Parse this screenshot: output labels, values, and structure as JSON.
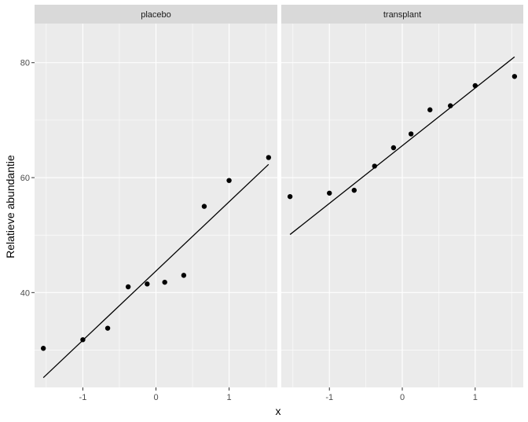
{
  "chart_data": {
    "type": "scatter",
    "xlabel": "x",
    "ylabel": "Relatieve abundantie",
    "xlim": [
      -1.66,
      1.66
    ],
    "ylim": [
      23.5,
      86.8
    ],
    "x_ticks": [
      -1,
      0,
      1
    ],
    "x_tick_labels": [
      "-1",
      "0",
      "1"
    ],
    "y_ticks": [
      40,
      60,
      80
    ],
    "y_tick_labels": [
      "40",
      "60",
      "80"
    ],
    "y_minor_ticks": [
      30,
      50,
      70
    ],
    "x_minor_ticks": [
      -1.5,
      -0.5,
      0.5,
      1.5
    ],
    "grid": true,
    "legend": "none",
    "facets": [
      {
        "strip": "placebo",
        "x": [
          -1.54,
          -1.0,
          -0.66,
          -0.38,
          -0.12,
          0.12,
          0.38,
          0.66,
          1.0,
          1.54
        ],
        "y": [
          30.3,
          31.8,
          33.8,
          41.0,
          41.5,
          41.8,
          43.0,
          55.0,
          59.5,
          63.5
        ],
        "fit_line": {
          "x": [
            -1.54,
            1.54
          ],
          "y": [
            25.2,
            62.3
          ]
        }
      },
      {
        "strip": "transplant",
        "x": [
          -1.54,
          -1.0,
          -0.66,
          -0.38,
          -0.12,
          0.12,
          0.38,
          0.66,
          1.0,
          1.54
        ],
        "y": [
          56.7,
          57.3,
          57.8,
          62.0,
          65.2,
          67.6,
          71.8,
          72.5,
          76.0,
          77.6
        ],
        "fit_line": {
          "x": [
            -1.54,
            1.54
          ],
          "y": [
            50.1,
            81.0
          ]
        }
      }
    ],
    "colors": {
      "panel_bg": "#ebebeb",
      "grid": "#ffffff",
      "strip_bg": "#d9d9d9",
      "points": "#000000",
      "line": "#000000"
    }
  }
}
